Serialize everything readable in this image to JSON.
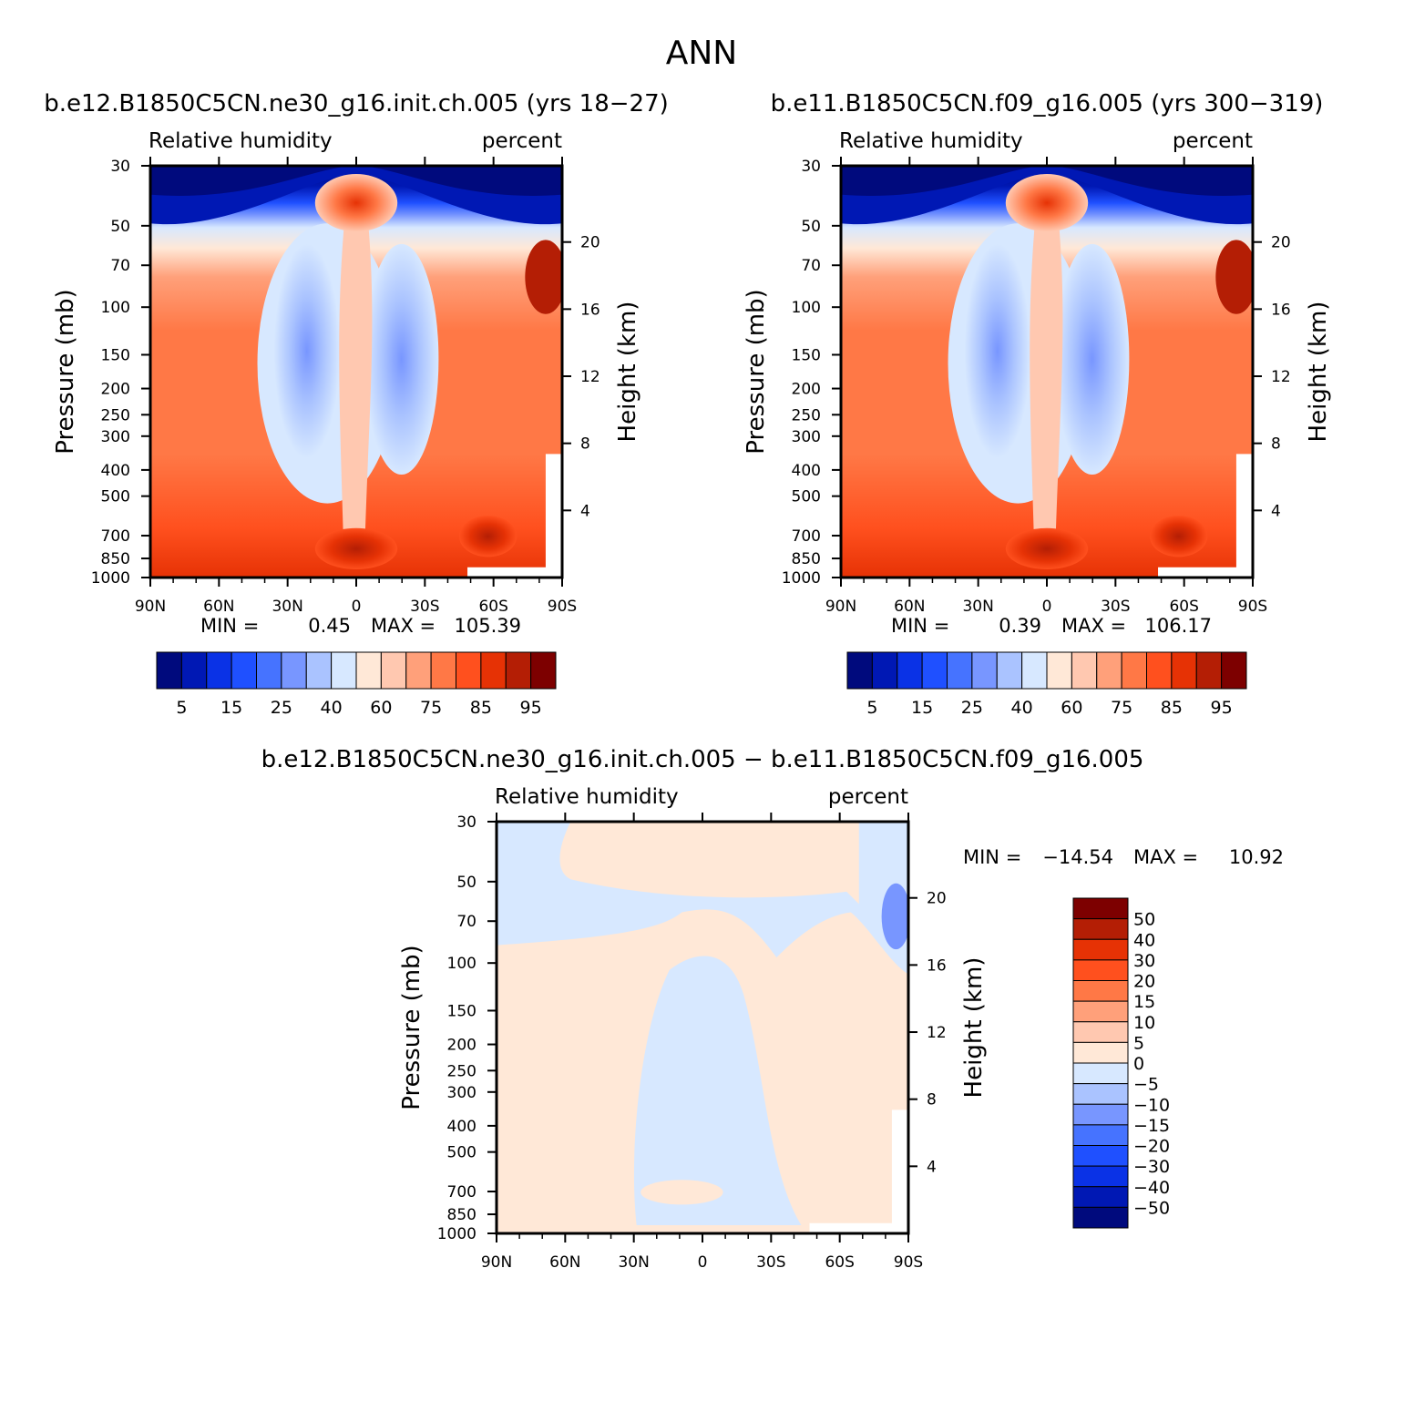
{
  "figure": {
    "title": "ANN"
  },
  "chart_data": [
    {
      "type": "heatmap",
      "id": "p1",
      "title": "b.e12.B1850C5CN.ne30_g16.init.ch.005 (yrs 18−27)",
      "left_subtitle": "Relative humidity",
      "right_subtitle": "percent",
      "ylabel": "Pressure (mb)",
      "y2label": "Height (km)",
      "x_ticks": [
        "90N",
        "60N",
        "30N",
        "0",
        "30S",
        "60S",
        "90S"
      ],
      "x_range": [
        90,
        -90
      ],
      "y_ticks": [
        30,
        50,
        70,
        100,
        150,
        200,
        250,
        300,
        400,
        500,
        700,
        850,
        1000
      ],
      "y_range": [
        1000,
        30
      ],
      "y2_ticks": [
        20,
        16,
        12,
        8,
        4
      ],
      "stats": {
        "min_label": "MIN =",
        "min": "0.45",
        "max_label": "MAX =",
        "max": "105.39"
      },
      "colorbar": {
        "orientation": "horizontal",
        "colors": [
          "#000a7d",
          "#0018b4",
          "#0a32e6",
          "#1f50ff",
          "#4673ff",
          "#7896ff",
          "#aac3ff",
          "#d7e8ff",
          "#ffe8d7",
          "#ffc8b0",
          "#ffa07a",
          "#ff7846",
          "#ff501e",
          "#e63205",
          "#b41e05",
          "#7d0000"
        ],
        "labels": [
          "5",
          "15",
          "25",
          "40",
          "60",
          "75",
          "85",
          "95"
        ]
      }
    },
    {
      "type": "heatmap",
      "id": "p2",
      "title": "b.e11.B1850C5CN.f09_g16.005 (yrs 300−319)",
      "left_subtitle": "Relative humidity",
      "right_subtitle": "percent",
      "ylabel": "Pressure (mb)",
      "y2label": "Height (km)",
      "x_ticks": [
        "90N",
        "60N",
        "30N",
        "0",
        "30S",
        "60S",
        "90S"
      ],
      "x_range": [
        90,
        -90
      ],
      "y_ticks": [
        30,
        50,
        70,
        100,
        150,
        200,
        250,
        300,
        400,
        500,
        700,
        850,
        1000
      ],
      "y_range": [
        1000,
        30
      ],
      "y2_ticks": [
        20,
        16,
        12,
        8,
        4
      ],
      "stats": {
        "min_label": "MIN =",
        "min": "0.39",
        "max_label": "MAX =",
        "max": "106.17"
      },
      "colorbar": {
        "orientation": "horizontal",
        "colors": [
          "#000a7d",
          "#0018b4",
          "#0a32e6",
          "#1f50ff",
          "#4673ff",
          "#7896ff",
          "#aac3ff",
          "#d7e8ff",
          "#ffe8d7",
          "#ffc8b0",
          "#ffa07a",
          "#ff7846",
          "#ff501e",
          "#e63205",
          "#b41e05",
          "#7d0000"
        ],
        "labels": [
          "5",
          "15",
          "25",
          "40",
          "60",
          "75",
          "85",
          "95"
        ]
      }
    },
    {
      "type": "heatmap",
      "id": "p3",
      "title": "b.e12.B1850C5CN.ne30_g16.init.ch.005 − b.e11.B1850C5CN.f09_g16.005",
      "left_subtitle": "Relative humidity",
      "right_subtitle": "percent",
      "ylabel": "Pressure (mb)",
      "y2label": "Height (km)",
      "x_ticks": [
        "90N",
        "60N",
        "30N",
        "0",
        "30S",
        "60S",
        "90S"
      ],
      "x_range": [
        90,
        -90
      ],
      "y_ticks": [
        30,
        50,
        70,
        100,
        150,
        200,
        250,
        300,
        400,
        500,
        700,
        850,
        1000
      ],
      "y_range": [
        1000,
        30
      ],
      "y2_ticks": [
        20,
        16,
        12,
        8,
        4
      ],
      "stats": {
        "min_label": "MIN =",
        "min": "−14.54",
        "max_label": "MAX =",
        "max": "10.92"
      },
      "colorbar": {
        "orientation": "vertical",
        "colors": [
          "#7d0000",
          "#b41e05",
          "#e63205",
          "#ff501e",
          "#ff7846",
          "#ffa07a",
          "#ffc8b0",
          "#ffe8d7",
          "#d7e8ff",
          "#aac3ff",
          "#7896ff",
          "#4673ff",
          "#1f50ff",
          "#0a32e6",
          "#0018b4",
          "#000a7d"
        ],
        "labels": [
          "50",
          "40",
          "30",
          "20",
          "15",
          "10",
          "5",
          "0",
          "−5",
          "−10",
          "−15",
          "−20",
          "−30",
          "−40",
          "−50"
        ]
      }
    }
  ]
}
